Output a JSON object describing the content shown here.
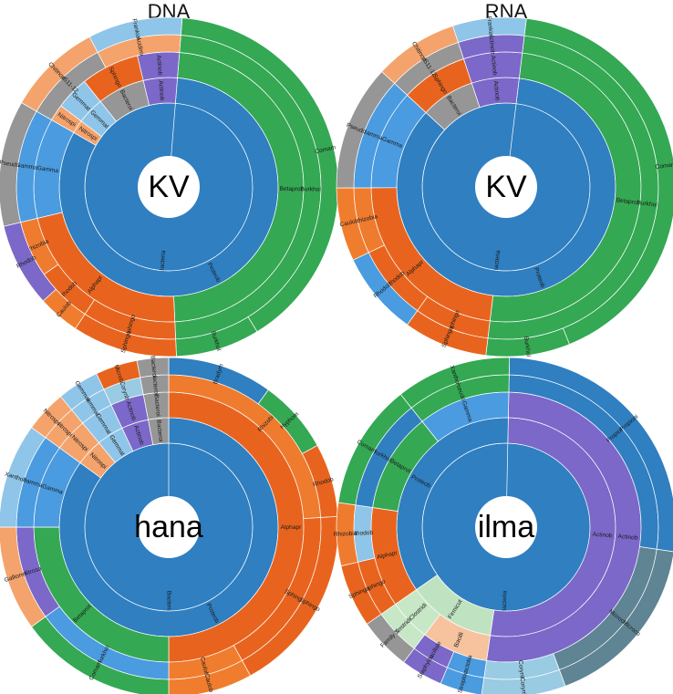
{
  "titles": {
    "dna": "DNA",
    "rna": "RNA"
  },
  "colors": {
    "Bacteria": "#2f7fc1",
    "Proteob": "#2f7fc1",
    "Betaprot": "#34a853",
    "Burkhold": "#34a853",
    "Comam": "#34a853",
    "Alphapr": "#e8641e",
    "Caulob": "#f07d2d",
    "Rhizobia": "#ef7b2e",
    "Sphingo": "#e8641e",
    "Gamma": "#4a9be0",
    "Actinob": "#7b68c8",
    "Bacteroi": "#969696",
    "Nitrospi": "#f4a36c",
    "Gemmat": "#8fc5e8",
    "Firmicut": "#bfe3c0",
    "Bacilli": "#f6c39e",
    "Clostridi": "#c7e7c7",
    "Microco": "#5f8494",
    "Corynb": "#99cbe3"
  },
  "chart_data": [
    {
      "type": "sunburst",
      "panel": "DNA",
      "center_label": "KV",
      "rings": [
        [
          {
            "name": "Bacteria",
            "value": 100
          }
        ],
        [
          {
            "name": "Proteob",
            "value": 82
          },
          {
            "name": "Nitrospi",
            "value": 2
          },
          {
            "name": "Gemmat",
            "value": 4
          },
          {
            "name": "Bacteroi",
            "value": 7
          },
          {
            "name": "Actinob",
            "value": 5
          }
        ],
        [
          {
            "name": "Betaprot",
            "value": 48
          },
          {
            "name": "Alphapr",
            "value": 22
          },
          {
            "name": "Gamma",
            "value": 12
          },
          {
            "name": "Nitrospi",
            "value": 2
          },
          {
            "name": "Gemmat",
            "value": 4
          },
          {
            "name": "Sphingo",
            "value": 7
          },
          {
            "name": "Actinob",
            "value": 5
          }
        ],
        [
          {
            "name": "Burkhold",
            "value": 48
          },
          {
            "name": "Sphingo",
            "value": 10
          },
          {
            "name": "Rhodob",
            "value": 6
          },
          {
            "name": "Rhizobia",
            "value": 6
          },
          {
            "name": "Gamma",
            "value": 12
          },
          {
            "name": "NS11-12",
            "value": 9
          },
          {
            "name": "Acidimi",
            "value": 9
          }
        ],
        [
          {
            "name": "Comam",
            "value": 40
          },
          {
            "name": "Burkhol",
            "value": 8
          },
          {
            "name": "Sphingo",
            "value": 10
          },
          {
            "name": "Caulob",
            "value": 4
          },
          {
            "name": "Rhodob",
            "value": 8
          },
          {
            "name": "Pseudo",
            "value": 12
          },
          {
            "name": "Chitinop",
            "value": 9
          },
          {
            "name": "Frankial",
            "value": 9
          }
        ]
      ]
    },
    {
      "type": "sunburst",
      "panel": "RNA",
      "center_label": "KV",
      "rings": [
        [
          {
            "name": "Bacteria",
            "value": 100
          }
        ],
        [
          {
            "name": "Proteob",
            "value": 85
          },
          {
            "name": "Bacteroi",
            "value": 8
          },
          {
            "name": "Actinob",
            "value": 7
          }
        ],
        [
          {
            "name": "Betaprot",
            "value": 50
          },
          {
            "name": "Alphapr",
            "value": 23
          },
          {
            "name": "Gamma",
            "value": 12
          },
          {
            "name": "Sphingo",
            "value": 8
          },
          {
            "name": "Actinob",
            "value": 7
          }
        ],
        [
          {
            "name": "Burkhold",
            "value": 50
          },
          {
            "name": "Sphingo",
            "value": 8
          },
          {
            "name": "Rhodob",
            "value": 8
          },
          {
            "name": "Rhizobia",
            "value": 7
          },
          {
            "name": "Gamma",
            "value": 12
          },
          {
            "name": "NS11-12",
            "value": 8
          },
          {
            "name": "Actinob",
            "value": 7
          }
        ],
        [
          {
            "name": "Comam",
            "value": 42
          },
          {
            "name": "Burkhol",
            "value": 8
          },
          {
            "name": "Sphingo",
            "value": 8
          },
          {
            "name": "Rhodob",
            "value": 8
          },
          {
            "name": "Caulob",
            "value": 7
          },
          {
            "name": "Pseudo",
            "value": 12
          },
          {
            "name": "Chitinop",
            "value": 8
          },
          {
            "name": "Frankial",
            "value": 7
          }
        ]
      ]
    },
    {
      "type": "sunburst",
      "panel": "DNA",
      "center_label": "hana",
      "rings": [
        [
          {
            "name": "Bacteria",
            "value": 100
          }
        ],
        [
          {
            "name": "Proteob",
            "value": 85
          },
          {
            "name": "Nitrospi",
            "value": 4
          },
          {
            "name": "Gemmat",
            "value": 4
          },
          {
            "name": "Actinob",
            "value": 4
          },
          {
            "name": "Bacteroi",
            "value": 3
          }
        ],
        [
          {
            "name": "Alphapr",
            "value": 50
          },
          {
            "name": "Betaprot",
            "value": 25
          },
          {
            "name": "Gamma",
            "value": 10
          },
          {
            "name": "Nitrospi",
            "value": 4
          },
          {
            "name": "Gemmat",
            "value": 4
          },
          {
            "name": "Actinob",
            "value": 4
          },
          {
            "name": "Bacteroi",
            "value": 3
          }
        ],
        [
          {
            "name": "Rhizobia",
            "value": 24
          },
          {
            "name": "Sphingo",
            "value": 18
          },
          {
            "name": "Caulob",
            "value": 8
          },
          {
            "name": "Burkhol",
            "value": 15
          },
          {
            "name": "Nitroso",
            "value": 10
          },
          {
            "name": "Gamma",
            "value": 10
          },
          {
            "name": "Nitrospi",
            "value": 4
          },
          {
            "name": "Gemmat",
            "value": 4
          },
          {
            "name": "Corynb",
            "value": 4
          },
          {
            "name": "Bacteroi",
            "value": 3
          }
        ],
        [
          {
            "name": "Bradyrh",
            "value": 10
          },
          {
            "name": "Hyphom",
            "value": 7
          },
          {
            "name": "Rhodob",
            "value": 7
          },
          {
            "name": "Sphingo",
            "value": 18
          },
          {
            "name": "Caulob",
            "value": 8
          },
          {
            "name": "Comam",
            "value": 15
          },
          {
            "name": "Gallionel",
            "value": 10
          },
          {
            "name": "Xanthob",
            "value": 10
          },
          {
            "name": "Nitrospi",
            "value": 4
          },
          {
            "name": "Gemmat",
            "value": 4
          },
          {
            "name": "Microbi",
            "value": 4
          },
          {
            "name": "Bacteroi",
            "value": 3
          }
        ]
      ]
    },
    {
      "type": "sunburst",
      "panel": "RNA",
      "center_label": "ilma",
      "rings": [
        [
          {
            "name": "Bacteria",
            "value": 100
          }
        ],
        [
          {
            "name": "Actinob",
            "value": 52
          },
          {
            "name": "Firmicut",
            "value": 13
          },
          {
            "name": "Proteob",
            "value": 35
          }
        ],
        [
          {
            "name": "Actinob",
            "value": 52
          },
          {
            "name": "Bacilli",
            "value": 8
          },
          {
            "name": "Clostridi",
            "value": 5
          },
          {
            "name": "Alphapr",
            "value": 12
          },
          {
            "name": "Betaprot",
            "value": 12
          },
          {
            "name": "Gamma",
            "value": 11
          }
        ],
        [
          {
            "name": "Propioni",
            "value": 27
          },
          {
            "name": "Microco",
            "value": 17
          },
          {
            "name": "Corynb",
            "value": 8
          },
          {
            "name": "Lactoba",
            "value": 4
          },
          {
            "name": "Bacillale",
            "value": 4
          },
          {
            "name": "Clostridi",
            "value": 5
          },
          {
            "name": "Sphingo",
            "value": 6
          },
          {
            "name": "Rhodob",
            "value": 6
          },
          {
            "name": "Burkhol",
            "value": 12
          },
          {
            "name": "Pseudo",
            "value": 11
          }
        ],
        [
          {
            "name": "Propioni",
            "value": 27
          },
          {
            "name": "Microco",
            "value": 17
          },
          {
            "name": "Corynb",
            "value": 8
          },
          {
            "name": "Streptoc",
            "value": 4
          },
          {
            "name": "Staphyloc",
            "value": 4
          },
          {
            "name": "Family X",
            "value": 5
          },
          {
            "name": "Sphingo",
            "value": 6
          },
          {
            "name": "Rhizobia",
            "value": 6
          },
          {
            "name": "Comam",
            "value": 12
          },
          {
            "name": "Xantho",
            "value": 11
          }
        ]
      ]
    }
  ]
}
